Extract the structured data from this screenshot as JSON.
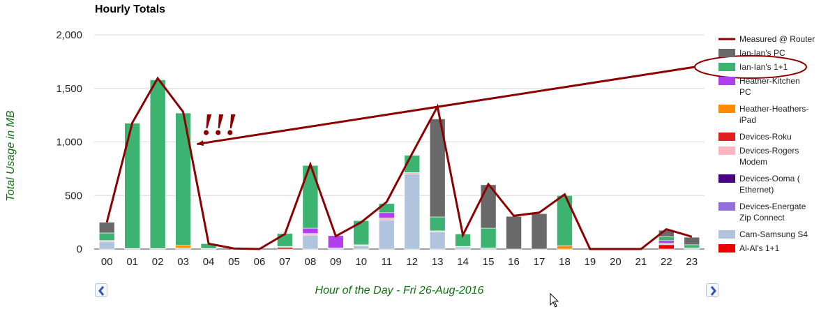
{
  "chart_data": {
    "type": "bar",
    "stacked": true,
    "title": "Hourly Totals",
    "xlabel": "Hour of the Day - Fri 26-Aug-2016",
    "ylabel": "Total Usage in MB",
    "ylim": [
      0,
      2000
    ],
    "yticks": [
      "0",
      "500",
      "1,000",
      "1,500",
      "2,000"
    ],
    "ytick_values": [
      0,
      500,
      1000,
      1500,
      2000
    ],
    "grid": true,
    "legend_position": "right",
    "categories": [
      "00",
      "01",
      "02",
      "03",
      "04",
      "05",
      "06",
      "07",
      "08",
      "09",
      "10",
      "11",
      "12",
      "13",
      "14",
      "15",
      "16",
      "17",
      "18",
      "19",
      "20",
      "21",
      "22",
      "23"
    ],
    "series": [
      {
        "name": "Al-Al's 1+1",
        "color": "#ee0000",
        "values": [
          0,
          0,
          0,
          0,
          0,
          0,
          0,
          15,
          0,
          0,
          0,
          0,
          0,
          0,
          0,
          0,
          0,
          0,
          0,
          0,
          0,
          0,
          40,
          0
        ]
      },
      {
        "name": "Cam-Samsung S4",
        "color": "#b0c4de",
        "values": [
          70,
          5,
          5,
          10,
          5,
          0,
          0,
          5,
          130,
          10,
          30,
          270,
          700,
          160,
          20,
          10,
          0,
          0,
          0,
          0,
          0,
          0,
          15,
          10
        ]
      },
      {
        "name": "Devices-Energate Zip Connect",
        "color": "#9370db",
        "values": [
          0,
          0,
          0,
          0,
          0,
          0,
          0,
          0,
          0,
          0,
          0,
          0,
          0,
          0,
          0,
          0,
          0,
          0,
          0,
          0,
          0,
          0,
          0,
          0
        ]
      },
      {
        "name": "Devices-Ooma ( Ethernet)",
        "color": "#4b0082",
        "values": [
          0,
          0,
          0,
          0,
          0,
          0,
          0,
          0,
          0,
          0,
          0,
          0,
          0,
          0,
          0,
          0,
          0,
          0,
          0,
          0,
          0,
          0,
          0,
          0
        ]
      },
      {
        "name": "Devices-Rogers Modem",
        "color": "#ffb6c1",
        "values": [
          10,
          0,
          0,
          0,
          0,
          0,
          0,
          0,
          15,
          0,
          10,
          20,
          15,
          10,
          5,
          0,
          0,
          0,
          0,
          0,
          0,
          0,
          0,
          0
        ]
      },
      {
        "name": "Devices-Roku",
        "color": "#e02020",
        "values": [
          0,
          0,
          0,
          0,
          0,
          0,
          0,
          5,
          0,
          0,
          0,
          0,
          0,
          0,
          0,
          0,
          0,
          0,
          0,
          0,
          0,
          0,
          0,
          0
        ]
      },
      {
        "name": "Heather-Heathers-iPad",
        "color": "#ff8c00",
        "values": [
          0,
          0,
          0,
          25,
          0,
          0,
          0,
          0,
          0,
          0,
          0,
          0,
          0,
          0,
          0,
          0,
          0,
          0,
          30,
          0,
          0,
          0,
          0,
          0
        ]
      },
      {
        "name": "Heather-Kitchen PC",
        "color": "#b040ee",
        "values": [
          0,
          0,
          0,
          0,
          0,
          0,
          0,
          0,
          50,
          115,
          0,
          50,
          0,
          0,
          0,
          0,
          0,
          0,
          0,
          0,
          0,
          0,
          25,
          0
        ]
      },
      {
        "name": "Ian-Ian's 1+1",
        "color": "#3cb371",
        "values": [
          70,
          1170,
          1575,
          1235,
          45,
          0,
          0,
          120,
          585,
          0,
          225,
          85,
          160,
          130,
          115,
          185,
          0,
          0,
          470,
          0,
          0,
          0,
          35,
          30
        ]
      },
      {
        "name": "Ian-Ian's PC",
        "color": "#696969",
        "values": [
          100,
          0,
          0,
          0,
          0,
          0,
          0,
          0,
          0,
          0,
          0,
          0,
          0,
          915,
          0,
          405,
          305,
          330,
          0,
          0,
          0,
          0,
          60,
          70
        ]
      }
    ],
    "line_series": {
      "name": "Measured @ Router",
      "color": "#8b0000",
      "values": [
        250,
        1180,
        1595,
        1280,
        50,
        5,
        0,
        140,
        790,
        120,
        250,
        440,
        890,
        1330,
        130,
        605,
        310,
        340,
        510,
        0,
        0,
        0,
        185,
        115
      ]
    },
    "legend": [
      "Measured @ Router",
      "Ian-Ian's PC",
      "Ian-Ian's 1+1",
      "Heather-Kitchen PC",
      "Heather-Heathers-iPad",
      "Devices-Roku",
      "Devices-Rogers Modem",
      "Devices-Ooma ( Ethernet)",
      "Devices-Energate Zip Connect",
      "Cam-Samsung S4",
      "Al-Al's 1+1"
    ],
    "annotation": {
      "text": "!!!",
      "color": "#8b0000",
      "points_to_hour": "03",
      "highlighted_legend": "Ian-Ian's 1+1"
    }
  },
  "nav": {
    "prev_icon": "chevron-left-icon",
    "next_icon": "chevron-right-icon"
  }
}
